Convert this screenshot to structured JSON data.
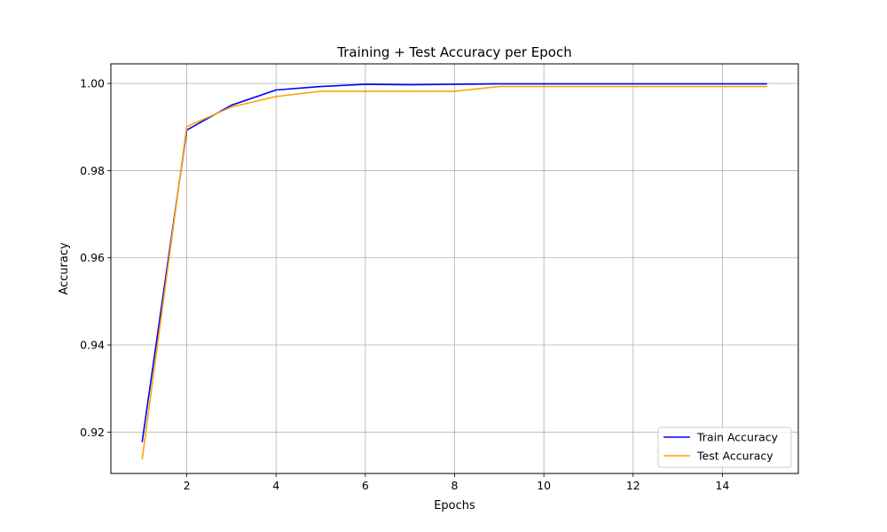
{
  "chart_data": {
    "type": "line",
    "title": "Training + Test Accuracy per Epoch",
    "xlabel": "Epochs",
    "ylabel": "Accuracy",
    "xlim": [
      0.3,
      15.7
    ],
    "ylim": [
      0.9105,
      1.0045
    ],
    "xticks": [
      2,
      4,
      6,
      8,
      10,
      12,
      14
    ],
    "yticks": [
      0.92,
      0.94,
      0.96,
      0.98,
      1.0
    ],
    "xtick_labels": [
      "2",
      "4",
      "6",
      "8",
      "10",
      "12",
      "14"
    ],
    "ytick_labels": [
      "0.92",
      "0.94",
      "0.96",
      "0.98",
      "1.00"
    ],
    "grid": true,
    "legend_position": "bottom-right",
    "x": [
      1,
      2,
      3,
      4,
      5,
      6,
      7,
      8,
      9,
      10,
      11,
      12,
      13,
      14,
      15
    ],
    "series": [
      {
        "name": "Train Accuracy",
        "color": "#0000ff",
        "values": [
          0.9177,
          0.9893,
          0.995,
          0.9985,
          0.9993,
          0.9998,
          0.9997,
          0.9998,
          0.9999,
          0.9999,
          0.9999,
          0.9999,
          0.9999,
          0.9999,
          0.9999
        ]
      },
      {
        "name": "Test Accuracy",
        "color": "#ffa500",
        "values": [
          0.9137,
          0.9901,
          0.9946,
          0.997,
          0.9982,
          0.9982,
          0.9982,
          0.9982,
          0.9993,
          0.9993,
          0.9993,
          0.9993,
          0.9993,
          0.9993,
          0.9993
        ]
      }
    ]
  }
}
